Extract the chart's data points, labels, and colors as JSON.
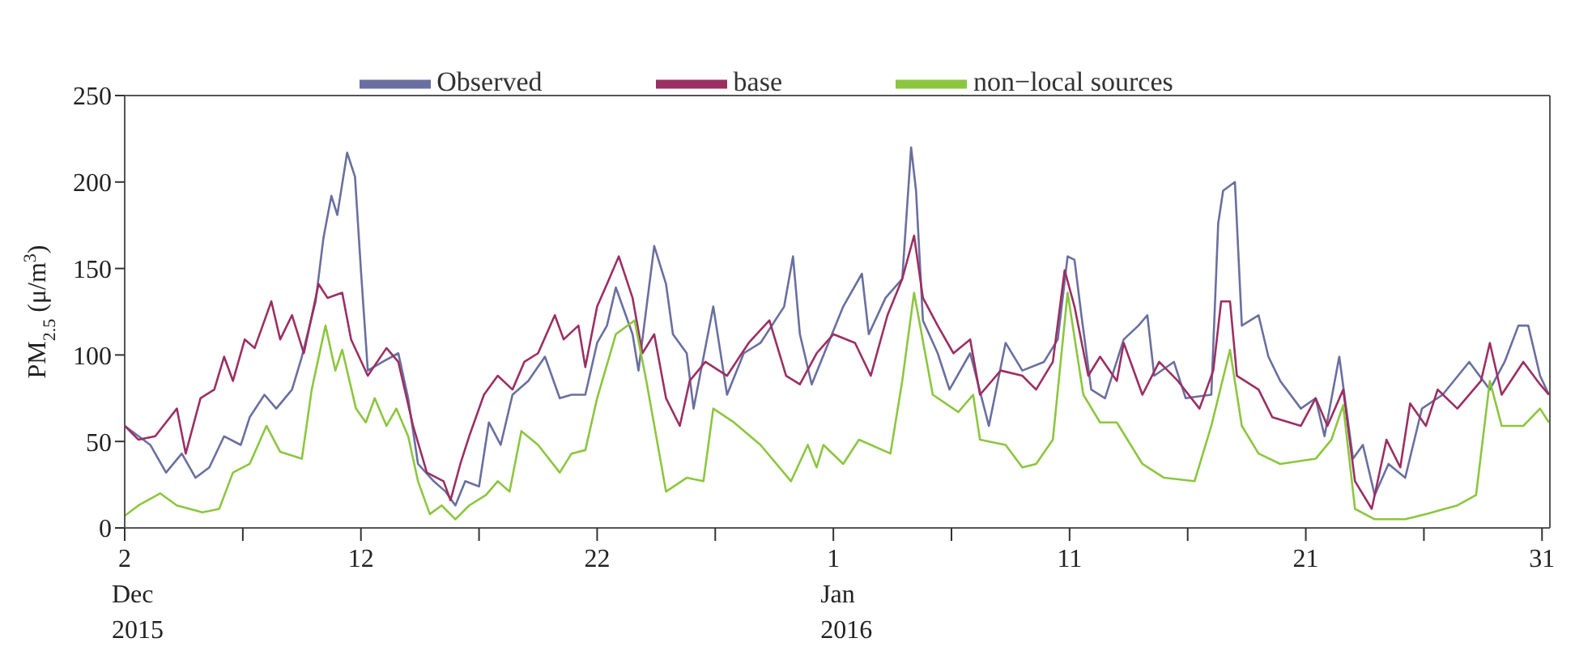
{
  "chart_data": {
    "type": "line",
    "ylabel": "PM$_{2.5}$ (μ/m$^{3}$)",
    "xlim": [
      "2015-12-02T00:00",
      "2016-01-31T08:00"
    ],
    "ylim": [
      0,
      250
    ],
    "yticks": [
      0,
      50,
      100,
      150,
      200,
      250
    ],
    "xticks": [
      {
        "value": "2015-12-02T00:00",
        "label": "2\nDec\n2015"
      },
      {
        "value": "2015-12-07T00:00",
        "label": null
      },
      {
        "value": "2015-12-12T00:00",
        "label": "12"
      },
      {
        "value": "2015-12-17T00:00",
        "label": null
      },
      {
        "value": "2015-12-22T00:00",
        "label": "22"
      },
      {
        "value": "2015-12-27T00:00",
        "label": null
      },
      {
        "value": "2016-01-01T00:00",
        "label": "1\nJan\n2016"
      },
      {
        "value": "2016-01-06T00:00",
        "label": null
      },
      {
        "value": "2016-01-11T00:00",
        "label": "11"
      },
      {
        "value": "2016-01-16T00:00",
        "label": null
      },
      {
        "value": "2016-01-21T00:00",
        "label": "21"
      },
      {
        "value": "2016-01-26T00:00",
        "label": null
      },
      {
        "value": "2016-01-31T00:00",
        "label": "31"
      }
    ],
    "legend": "top",
    "marker": "none",
    "line_style": "solid",
    "series": [
      {
        "name": "Observed",
        "color": "#6a6fa0",
        "x": [
          "2015-12-02T00:00",
          "2015-12-03T02:00",
          "2015-12-03T18:00",
          "2015-12-04T10:00",
          "2015-12-05T00:00",
          "2015-12-05T14:00",
          "2015-12-06T05:00",
          "2015-12-06T22:00",
          "2015-12-07T07:00",
          "2015-12-07T22:00",
          "2015-12-08T10:00",
          "2015-12-09T02:00",
          "2015-12-09T12:00",
          "2015-12-10T02:00",
          "2015-12-10T10:00",
          "2015-12-10T18:00",
          "2015-12-11T00:00",
          "2015-12-11T10:00",
          "2015-12-11T18:00",
          "2015-12-12T00:00",
          "2015-12-12T07:00",
          "2015-12-12T22:00",
          "2015-12-13T14:00",
          "2015-12-14T00:00",
          "2015-12-14T10:00",
          "2015-12-15T02:00",
          "2015-12-15T14:00",
          "2015-12-16T00:00",
          "2015-12-16T10:00",
          "2015-12-17T00:00",
          "2015-12-17T10:00",
          "2015-12-17T22:00",
          "2015-12-18T10:00",
          "2015-12-19T02:00",
          "2015-12-19T19:00",
          "2015-12-20T10:00",
          "2015-12-20T22:00",
          "2015-12-21T12:00",
          "2015-12-22T00:00",
          "2015-12-22T10:00",
          "2015-12-22T19:00",
          "2015-12-23T12:00",
          "2015-12-23T18:00",
          "2015-12-24T10:00",
          "2015-12-24T22:00",
          "2015-12-25T05:00",
          "2015-12-25T19:00",
          "2015-12-26T02:00",
          "2015-12-26T22:00",
          "2015-12-27T12:00",
          "2015-12-28T05:00",
          "2015-12-28T22:00",
          "2015-12-29T22:00",
          "2015-12-30T07:00",
          "2015-12-30T14:00",
          "2015-12-31T02:00",
          "2015-12-31T19:00",
          "2016-01-01T10:00",
          "2016-01-02T05:00",
          "2016-01-02T12:00",
          "2016-01-03T05:00",
          "2016-01-03T22:00",
          "2016-01-04T07:00",
          "2016-01-04T12:00",
          "2016-01-04T19:00",
          "2016-01-05T10:00",
          "2016-01-05T22:00",
          "2016-01-06T19:00",
          "2016-01-07T14:00",
          "2016-01-08T07:00",
          "2016-01-09T00:00",
          "2016-01-09T22:00",
          "2016-01-10T12:00",
          "2016-01-10T22:00",
          "2016-01-11T05:00",
          "2016-01-11T12:00",
          "2016-01-11T22:00",
          "2016-01-12T12:00",
          "2016-01-13T07:00",
          "2016-01-13T22:00",
          "2016-01-14T07:00",
          "2016-01-14T14:00",
          "2016-01-15T10:00",
          "2016-01-15T22:00",
          "2016-01-17T00:00",
          "2016-01-17T07:00",
          "2016-01-17T12:00",
          "2016-01-18T00:00",
          "2016-01-18T07:00",
          "2016-01-19T00:00",
          "2016-01-19T10:00",
          "2016-01-19T22:00",
          "2016-01-20T19:00",
          "2016-01-21T10:00",
          "2016-01-21T19:00",
          "2016-01-22T10:00",
          "2016-01-23T00:00",
          "2016-01-23T10:00",
          "2016-01-23T22:00",
          "2016-01-24T12:00",
          "2016-01-25T05:00",
          "2016-01-25T22:00",
          "2016-01-26T19:00",
          "2016-01-27T22:00",
          "2016-01-28T19:00",
          "2016-01-29T10:00",
          "2016-01-30T00:00",
          "2016-01-30T10:00",
          "2016-01-30T22:00",
          "2016-01-31T07:00"
        ],
        "values": [
          59,
          48,
          32,
          43,
          29,
          35,
          53,
          48,
          64,
          77,
          69,
          80,
          99,
          131,
          168,
          192,
          181,
          217,
          203,
          149,
          91,
          96,
          101,
          75,
          37,
          27,
          21,
          13,
          27,
          24,
          61,
          48,
          77,
          85,
          99,
          75,
          77,
          77,
          107,
          117,
          139,
          112,
          91,
          163,
          141,
          112,
          101,
          69,
          128,
          77,
          101,
          107,
          128,
          157,
          112,
          83,
          107,
          128,
          147,
          112,
          133,
          144,
          220,
          195,
          120,
          101,
          80,
          101,
          59,
          107,
          91,
          96,
          109,
          157,
          155,
          123,
          80,
          75,
          109,
          117,
          123,
          88,
          96,
          75,
          77,
          176,
          195,
          200,
          117,
          123,
          99,
          85,
          69,
          75,
          53,
          99,
          40,
          48,
          19,
          37,
          29,
          69,
          77,
          96,
          80,
          96,
          117,
          117,
          88,
          77
        ]
      },
      {
        "name": "base",
        "color": "#9b2f62",
        "x": [
          "2015-12-02T00:00",
          "2015-12-02T14:00",
          "2015-12-03T07:00",
          "2015-12-04T05:00",
          "2015-12-04T14:00",
          "2015-12-05T05:00",
          "2015-12-05T19:00",
          "2015-12-06T05:00",
          "2015-12-06T14:00",
          "2015-12-07T02:00",
          "2015-12-07T12:00",
          "2015-12-08T05:00",
          "2015-12-08T14:00",
          "2015-12-09T02:00",
          "2015-12-09T14:00",
          "2015-12-10T05:00",
          "2015-12-10T14:00",
          "2015-12-11T05:00",
          "2015-12-11T14:00",
          "2015-12-12T07:00",
          "2015-12-13T02:00",
          "2015-12-13T14:00",
          "2015-12-14T05:00",
          "2015-12-14T19:00",
          "2015-12-15T12:00",
          "2015-12-15T19:00",
          "2015-12-16T05:00",
          "2015-12-16T14:00",
          "2015-12-17T05:00",
          "2015-12-17T19:00",
          "2015-12-18T10:00",
          "2015-12-18T22:00",
          "2015-12-19T12:00",
          "2015-12-20T05:00",
          "2015-12-20T14:00",
          "2015-12-21T05:00",
          "2015-12-21T12:00",
          "2015-12-22T00:00",
          "2015-12-22T10:00",
          "2015-12-22T22:00",
          "2015-12-23T12:00",
          "2015-12-23T22:00",
          "2015-12-24T10:00",
          "2015-12-24T22:00",
          "2015-12-25T12:00",
          "2015-12-25T22:00",
          "2015-12-26T14:00",
          "2015-12-27T12:00",
          "2015-12-28T10:00",
          "2015-12-29T07:00",
          "2015-12-30T00:00",
          "2015-12-30T14:00",
          "2015-12-31T07:00",
          "2016-01-01T00:00",
          "2016-01-01T22:00",
          "2016-01-02T14:00",
          "2016-01-03T07:00",
          "2016-01-03T22:00",
          "2016-01-04T10:00",
          "2016-01-04T19:00",
          "2016-01-05T10:00",
          "2016-01-06T02:00",
          "2016-01-06T19:00",
          "2016-01-07T05:00",
          "2016-01-08T02:00",
          "2016-01-09T00:00",
          "2016-01-09T14:00",
          "2016-01-10T07:00",
          "2016-01-10T19:00",
          "2016-01-11T05:00",
          "2016-01-11T19:00",
          "2016-01-12T07:00",
          "2016-01-13T00:00",
          "2016-01-13T07:00",
          "2016-01-14T02:00",
          "2016-01-14T19:00",
          "2016-01-15T14:00",
          "2016-01-16T12:00",
          "2016-01-17T02:00",
          "2016-01-17T10:00",
          "2016-01-17T19:00",
          "2016-01-18T02:00",
          "2016-01-19T00:00",
          "2016-01-19T14:00",
          "2016-01-20T19:00",
          "2016-01-21T10:00",
          "2016-01-21T22:00",
          "2016-01-22T14:00",
          "2016-01-23T02:00",
          "2016-01-23T19:00",
          "2016-01-24T10:00",
          "2016-01-25T00:00",
          "2016-01-25T10:00",
          "2016-01-26T02:00",
          "2016-01-26T14:00",
          "2016-01-27T10:00",
          "2016-01-28T10:00",
          "2016-01-28T19:00",
          "2016-01-29T07:00",
          "2016-01-30T05:00",
          "2016-01-30T22:00",
          "2016-01-31T07:00"
        ],
        "values": [
          59,
          51,
          53,
          69,
          43,
          75,
          80,
          99,
          85,
          109,
          104,
          131,
          109,
          123,
          101,
          141,
          133,
          136,
          109,
          88,
          104,
          96,
          59,
          32,
          27,
          16,
          37,
          53,
          77,
          88,
          80,
          96,
          101,
          123,
          109,
          117,
          93,
          128,
          141,
          157,
          133,
          101,
          112,
          75,
          59,
          85,
          96,
          88,
          107,
          120,
          88,
          83,
          101,
          112,
          107,
          88,
          123,
          144,
          169,
          133,
          117,
          101,
          109,
          77,
          91,
          88,
          80,
          96,
          149,
          128,
          88,
          99,
          85,
          107,
          77,
          96,
          85,
          69,
          91,
          131,
          131,
          88,
          80,
          64,
          59,
          75,
          59,
          80,
          27,
          11,
          51,
          35,
          72,
          59,
          80,
          69,
          85,
          107,
          77,
          96,
          83,
          77
        ]
      },
      {
        "name": "non−local sources",
        "color": "#8cc63f",
        "x": [
          "2015-12-02T00:00",
          "2015-12-02T14:00",
          "2015-12-03T12:00",
          "2015-12-04T05:00",
          "2015-12-05T07:00",
          "2015-12-06T00:00",
          "2015-12-06T14:00",
          "2015-12-07T07:00",
          "2015-12-08T00:00",
          "2015-12-08T14:00",
          "2015-12-09T12:00",
          "2015-12-09T22:00",
          "2015-12-10T12:00",
          "2015-12-10T22:00",
          "2015-12-11T05:00",
          "2015-12-11T19:00",
          "2015-12-12T05:00",
          "2015-12-12T14:00",
          "2015-12-13T02:00",
          "2015-12-13T12:00",
          "2015-12-14T00:00",
          "2015-12-14T10:00",
          "2015-12-14T22:00",
          "2015-12-15T10:00",
          "2015-12-16T00:00",
          "2015-12-16T14:00",
          "2015-12-17T07:00",
          "2015-12-17T19:00",
          "2015-12-18T07:00",
          "2015-12-18T19:00",
          "2015-12-19T12:00",
          "2015-12-20T10:00",
          "2015-12-20T22:00",
          "2015-12-21T12:00",
          "2015-12-22T00:00",
          "2015-12-22T19:00",
          "2015-12-23T14:00",
          "2015-12-24T02:00",
          "2015-12-24T22:00",
          "2015-12-25T19:00",
          "2015-12-26T12:00",
          "2015-12-26T22:00",
          "2015-12-27T19:00",
          "2015-12-28T22:00",
          "2015-12-30T05:00",
          "2015-12-30T22:00",
          "2015-12-31T07:00",
          "2015-12-31T14:00",
          "2016-01-01T10:00",
          "2016-01-02T02:00",
          "2016-01-03T10:00",
          "2016-01-03T22:00",
          "2016-01-04T10:00",
          "2016-01-05T05:00",
          "2016-01-06T07:00",
          "2016-01-06T22:00",
          "2016-01-07T05:00",
          "2016-01-08T07:00",
          "2016-01-09T00:00",
          "2016-01-09T14:00",
          "2016-01-10T07:00",
          "2016-01-10T22:00",
          "2016-01-11T14:00",
          "2016-01-12T07:00",
          "2016-01-13T00:00",
          "2016-01-14T02:00",
          "2016-01-15T00:00",
          "2016-01-16T07:00",
          "2016-01-17T00:00",
          "2016-01-17T19:00",
          "2016-01-18T07:00",
          "2016-01-19T00:00",
          "2016-01-19T22:00",
          "2016-01-21T10:00",
          "2016-01-22T02:00",
          "2016-01-22T14:00",
          "2016-01-23T02:00",
          "2016-01-23T22:00",
          "2016-01-25T05:00",
          "2016-01-26T02:00",
          "2016-01-27T10:00",
          "2016-01-28T05:00",
          "2016-01-28T19:00",
          "2016-01-29T07:00",
          "2016-01-30T05:00",
          "2016-01-30T22:00",
          "2016-01-31T07:00"
        ],
        "values": [
          7,
          13,
          20,
          13,
          9,
          11,
          32,
          37,
          59,
          44,
          40,
          80,
          117,
          91,
          103,
          69,
          61,
          75,
          59,
          69,
          53,
          27,
          8,
          13,
          5,
          13,
          19,
          27,
          21,
          56,
          48,
          32,
          43,
          45,
          75,
          112,
          120,
          85,
          21,
          29,
          27,
          69,
          61,
          48,
          27,
          48,
          35,
          48,
          37,
          51,
          43,
          85,
          136,
          77,
          67,
          77,
          51,
          48,
          35,
          37,
          51,
          136,
          77,
          61,
          61,
          37,
          29,
          27,
          59,
          103,
          59,
          43,
          37,
          40,
          51,
          71,
          11,
          5,
          5,
          8,
          13,
          19,
          85,
          59,
          59,
          69,
          61
        ]
      }
    ]
  }
}
